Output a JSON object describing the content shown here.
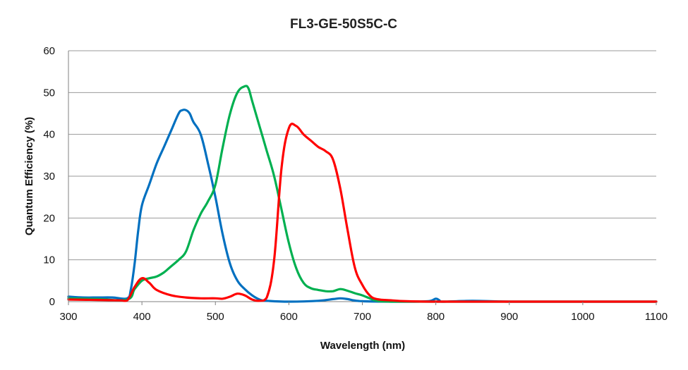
{
  "chart_data": {
    "type": "line",
    "title": "FL3-GE-50S5C-C",
    "xlabel": "Wavelength (nm)",
    "ylabel": "Quantum Efficiency (%)",
    "xlim": [
      300,
      1100
    ],
    "ylim": [
      0,
      60
    ],
    "x_ticks": [
      "300",
      "400",
      "500",
      "600",
      "700",
      "800",
      "900",
      "1000",
      "1100"
    ],
    "y_ticks": [
      "0",
      "10",
      "20",
      "30",
      "40",
      "50",
      "60"
    ],
    "grid": "horizontal",
    "legend": "none",
    "series": [
      {
        "color": "#0070C0",
        "points": [
          [
            300,
            1.2
          ],
          [
            320,
            1
          ],
          [
            340,
            1
          ],
          [
            360,
            1
          ],
          [
            380,
            0.8
          ],
          [
            385,
            3
          ],
          [
            390,
            9
          ],
          [
            395,
            17
          ],
          [
            400,
            23
          ],
          [
            410,
            28
          ],
          [
            420,
            33
          ],
          [
            430,
            37
          ],
          [
            440,
            41
          ],
          [
            450,
            45
          ],
          [
            455,
            45.8
          ],
          [
            460,
            45.8
          ],
          [
            465,
            45
          ],
          [
            470,
            43
          ],
          [
            480,
            40
          ],
          [
            490,
            33
          ],
          [
            500,
            25
          ],
          [
            510,
            16
          ],
          [
            520,
            9
          ],
          [
            530,
            5
          ],
          [
            540,
            3
          ],
          [
            550,
            1.5
          ],
          [
            560,
            0.5
          ],
          [
            570,
            0.2
          ],
          [
            600,
            0
          ],
          [
            640,
            0.2
          ],
          [
            660,
            0.6
          ],
          [
            670,
            0.8
          ],
          [
            680,
            0.6
          ],
          [
            700,
            0.1
          ],
          [
            760,
            0
          ],
          [
            790,
            0.1
          ],
          [
            800,
            0.7
          ],
          [
            805,
            0.3
          ],
          [
            810,
            0
          ],
          [
            850,
            0.2
          ],
          [
            900,
            0
          ],
          [
            1000,
            0
          ],
          [
            1100,
            0
          ]
        ]
      },
      {
        "color": "#00B050",
        "points": [
          [
            300,
            0.8
          ],
          [
            340,
            0.6
          ],
          [
            380,
            0.5
          ],
          [
            390,
            3
          ],
          [
            400,
            5
          ],
          [
            410,
            5.6
          ],
          [
            420,
            6
          ],
          [
            430,
            7
          ],
          [
            440,
            8.5
          ],
          [
            450,
            10
          ],
          [
            460,
            12
          ],
          [
            470,
            17
          ],
          [
            480,
            21
          ],
          [
            490,
            24
          ],
          [
            500,
            28
          ],
          [
            510,
            37
          ],
          [
            520,
            45
          ],
          [
            530,
            50
          ],
          [
            540,
            51.5
          ],
          [
            545,
            51
          ],
          [
            550,
            48
          ],
          [
            560,
            42
          ],
          [
            570,
            36
          ],
          [
            580,
            30
          ],
          [
            590,
            22
          ],
          [
            600,
            14
          ],
          [
            610,
            8
          ],
          [
            620,
            4.5
          ],
          [
            630,
            3.2
          ],
          [
            640,
            2.8
          ],
          [
            650,
            2.5
          ],
          [
            660,
            2.5
          ],
          [
            670,
            3
          ],
          [
            680,
            2.6
          ],
          [
            690,
            2
          ],
          [
            700,
            1.5
          ],
          [
            710,
            0.8
          ],
          [
            720,
            0.2
          ],
          [
            740,
            0
          ],
          [
            800,
            0
          ],
          [
            900,
            0
          ],
          [
            1000,
            0
          ],
          [
            1100,
            0
          ]
        ]
      },
      {
        "color": "#FF0000",
        "points": [
          [
            300,
            0.5
          ],
          [
            340,
            0.4
          ],
          [
            370,
            0.3
          ],
          [
            380,
            0.3
          ],
          [
            390,
            3.5
          ],
          [
            400,
            5.6
          ],
          [
            410,
            4.5
          ],
          [
            420,
            2.8
          ],
          [
            440,
            1.5
          ],
          [
            460,
            1
          ],
          [
            480,
            0.8
          ],
          [
            500,
            0.8
          ],
          [
            510,
            0.7
          ],
          [
            520,
            1.2
          ],
          [
            530,
            1.9
          ],
          [
            540,
            1.5
          ],
          [
            550,
            0.5
          ],
          [
            560,
            0.2
          ],
          [
            570,
            1
          ],
          [
            580,
            10
          ],
          [
            590,
            32
          ],
          [
            600,
            41.5
          ],
          [
            610,
            42
          ],
          [
            620,
            40
          ],
          [
            630,
            38.5
          ],
          [
            640,
            37
          ],
          [
            650,
            36
          ],
          [
            660,
            34
          ],
          [
            670,
            27
          ],
          [
            680,
            17
          ],
          [
            690,
            8
          ],
          [
            700,
            4
          ],
          [
            710,
            1.5
          ],
          [
            720,
            0.6
          ],
          [
            740,
            0.3
          ],
          [
            760,
            0.1
          ],
          [
            800,
            0
          ],
          [
            900,
            0
          ],
          [
            1000,
            0
          ],
          [
            1100,
            0
          ]
        ]
      }
    ]
  }
}
